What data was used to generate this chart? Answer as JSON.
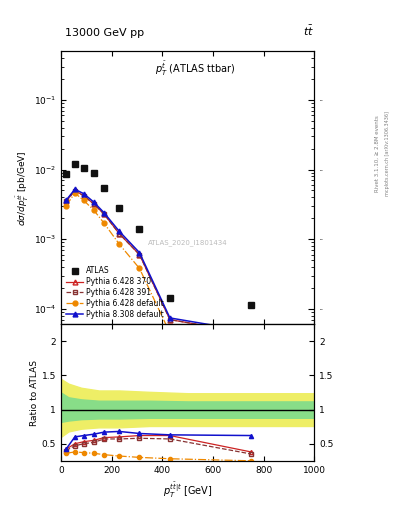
{
  "title_left": "13000 GeV pp",
  "title_right": "tt",
  "watermark": "ATLAS_2020_I1801434",
  "ylabel_main": "dσ/dp_T^{t̅t̅} [pb/GeV]",
  "ylabel_ratio": "Ratio to ATLAS",
  "xlabel": "p^{ttbar|t}_T [GeV]",
  "xlim": [
    0,
    1000
  ],
  "ylim_main": [
    6e-05,
    0.5
  ],
  "ylim_ratio": [
    0.25,
    2.25
  ],
  "atlas_x": [
    20,
    55,
    90,
    130,
    170,
    230,
    310,
    430,
    750
  ],
  "atlas_y": [
    0.0085,
    0.012,
    0.0105,
    0.009,
    0.0055,
    0.0028,
    0.0014,
    0.000145,
    0.000115
  ],
  "pythia6_370_x": [
    20,
    55,
    90,
    130,
    170,
    230,
    310,
    430,
    750
  ],
  "pythia6_370_y": [
    0.0035,
    0.005,
    0.0042,
    0.0032,
    0.0023,
    0.0012,
    0.0006,
    7e-05,
    4.4e-05
  ],
  "pythia6_391_x": [
    20,
    55,
    90,
    130,
    170,
    230,
    310,
    430,
    750
  ],
  "pythia6_391_y": [
    0.0035,
    0.0049,
    0.0042,
    0.0032,
    0.0023,
    0.0012,
    0.0006,
    7e-05,
    4.4e-05
  ],
  "pythia6_def_x": [
    20,
    55,
    90,
    130,
    170,
    230,
    310,
    430,
    750
  ],
  "pythia6_def_y": [
    0.003,
    0.0046,
    0.0036,
    0.0026,
    0.0017,
    0.00085,
    0.00038,
    4.5e-05,
    3.1e-05
  ],
  "pythia8_def_x": [
    20,
    55,
    90,
    130,
    170,
    230,
    310,
    430,
    750
  ],
  "pythia8_def_y": [
    0.0036,
    0.0052,
    0.0045,
    0.0034,
    0.0024,
    0.0013,
    0.00064,
    7.4e-05,
    4.7e-05
  ],
  "band_x": [
    0,
    30,
    80,
    150,
    230,
    350,
    500,
    700,
    1000
  ],
  "green_lo_y": [
    0.82,
    0.84,
    0.86,
    0.87,
    0.87,
    0.88,
    0.88,
    0.88,
    0.88
  ],
  "green_hi_y": [
    1.25,
    1.18,
    1.15,
    1.13,
    1.13,
    1.13,
    1.12,
    1.12,
    1.12
  ],
  "yellow_lo_y": [
    0.6,
    0.68,
    0.72,
    0.74,
    0.74,
    0.76,
    0.76,
    0.76,
    0.76
  ],
  "yellow_hi_y": [
    1.45,
    1.38,
    1.32,
    1.28,
    1.28,
    1.26,
    1.24,
    1.24,
    1.24
  ],
  "ratio_p6_370_y": [
    0.42,
    0.5,
    0.53,
    0.55,
    0.59,
    0.6,
    0.62,
    0.62,
    0.38
  ],
  "ratio_p6_391_y": [
    0.4,
    0.47,
    0.5,
    0.52,
    0.57,
    0.57,
    0.58,
    0.57,
    0.35
  ],
  "ratio_p6_def_y": [
    0.36,
    0.38,
    0.37,
    0.36,
    0.34,
    0.32,
    0.3,
    0.28,
    0.25
  ],
  "ratio_p8_def_y": [
    0.42,
    0.6,
    0.62,
    0.64,
    0.67,
    0.68,
    0.65,
    0.63,
    0.62
  ],
  "color_atlas": "#111111",
  "color_p6_370": "#cc2222",
  "color_p6_391": "#883333",
  "color_p6_def": "#ee8800",
  "color_p8_def": "#1111cc",
  "color_green": "#88dd88",
  "color_yellow": "#eeee66"
}
